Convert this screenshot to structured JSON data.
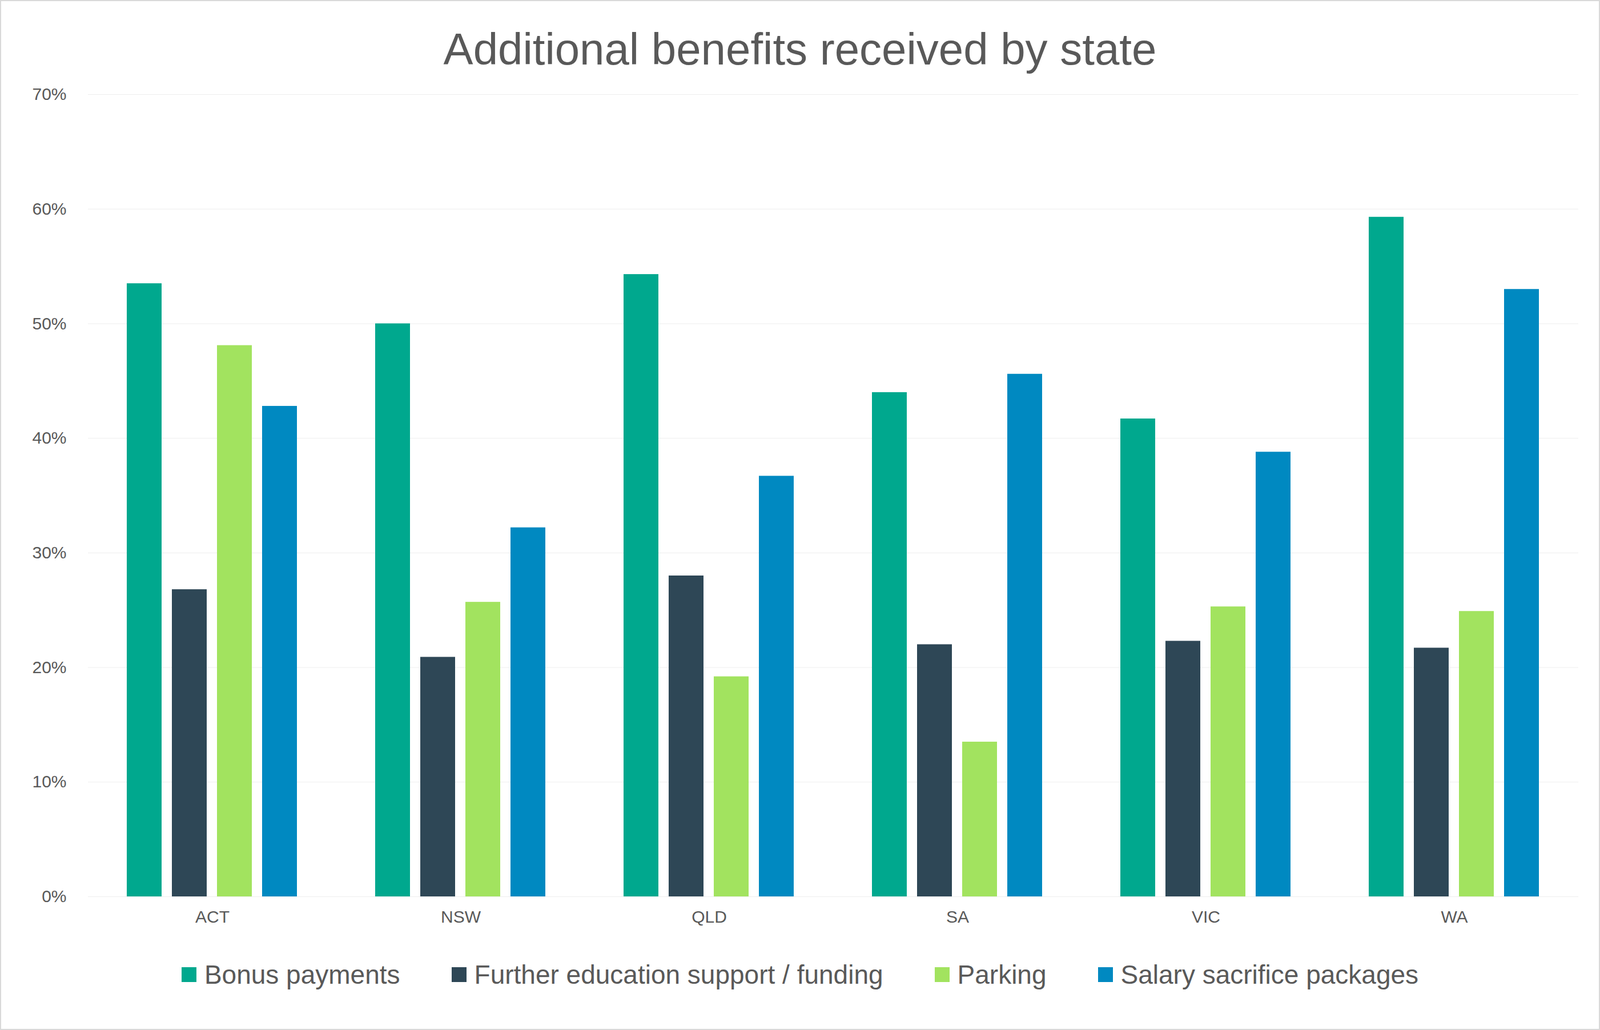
{
  "chart_data": {
    "type": "bar",
    "title": "Additional benefits received by state",
    "categories": [
      "ACT",
      "NSW",
      "QLD",
      "SA",
      "VIC",
      "WA"
    ],
    "series": [
      {
        "name": "Bonus payments",
        "color": "#00a88e",
        "values": [
          53.5,
          50.0,
          54.3,
          44.0,
          41.7,
          59.3
        ]
      },
      {
        "name": "Further education support / funding",
        "color": "#2e4756",
        "values": [
          26.8,
          20.9,
          28.0,
          22.0,
          22.3,
          21.7
        ]
      },
      {
        "name": "Parking",
        "color": "#a2e35f",
        "values": [
          48.1,
          25.7,
          19.2,
          13.5,
          25.3,
          24.9
        ]
      },
      {
        "name": "Salary sacrifice packages",
        "color": "#0089c1",
        "values": [
          42.8,
          32.2,
          36.7,
          45.6,
          38.8,
          53.0
        ]
      }
    ],
    "ylim": [
      0,
      70
    ],
    "yticks": [
      {
        "value": 0,
        "label": "0%"
      },
      {
        "value": 10,
        "label": "10%"
      },
      {
        "value": 20,
        "label": "20%"
      },
      {
        "value": 30,
        "label": "30%"
      },
      {
        "value": 40,
        "label": "40%"
      },
      {
        "value": 50,
        "label": "50%"
      },
      {
        "value": 60,
        "label": "60%"
      },
      {
        "value": 70,
        "label": "70%"
      }
    ],
    "grid": true,
    "legend": "bottom"
  }
}
